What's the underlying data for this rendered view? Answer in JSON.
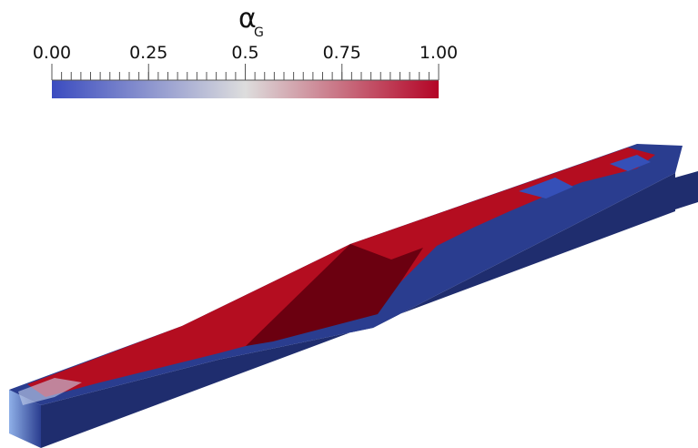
{
  "colorbar": {
    "title": "α",
    "subscript": "G",
    "range": [
      0,
      1
    ],
    "ticks": [
      {
        "value": 0,
        "label": "0.00"
      },
      0.25,
      0.5,
      0.75,
      {
        "value": 1,
        "label": "1.00"
      }
    ],
    "colors": [
      "#3b4cc0",
      "#dddddd",
      "#b40426"
    ]
  }
}
